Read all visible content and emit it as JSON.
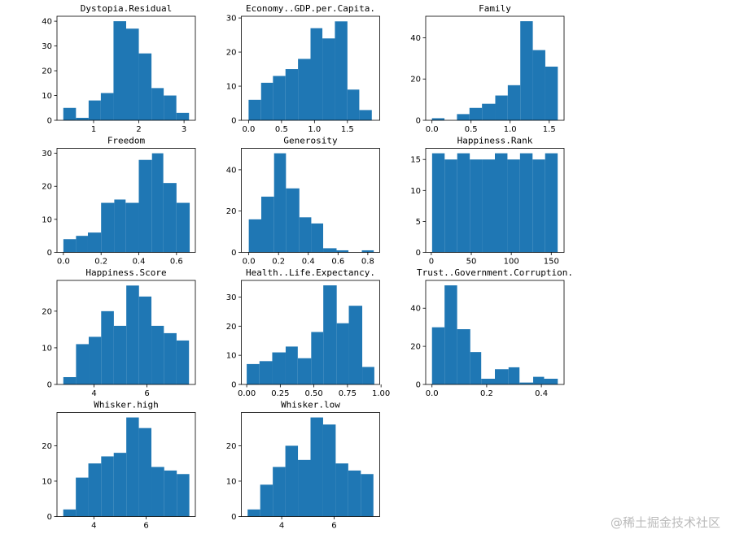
{
  "chart_data": [
    {
      "type": "histogram",
      "title": "Dystopia.Residual",
      "color": "#1f77b4",
      "bins": [
        0.33,
        0.61,
        0.89,
        1.16,
        1.44,
        1.72,
        2.0,
        2.28,
        2.55,
        2.83,
        3.11
      ],
      "values": [
        5,
        1,
        8,
        11,
        40,
        37,
        27,
        13,
        10,
        3
      ],
      "xlim": [
        0.19,
        3.25
      ],
      "ylim": [
        0,
        42
      ],
      "xticks": [
        1,
        2,
        3
      ],
      "yticks": [
        0,
        10,
        20,
        30,
        40
      ]
    },
    {
      "type": "histogram",
      "title": "Economy..GDP.per.Capita.",
      "color": "#1f77b4",
      "bins": [
        0,
        0.19,
        0.37,
        0.56,
        0.75,
        0.94,
        1.12,
        1.31,
        1.5,
        1.68,
        1.87
      ],
      "values": [
        6,
        11,
        13,
        15,
        18,
        27,
        24,
        29,
        9,
        3
      ],
      "xlim": [
        -0.11,
        1.99
      ],
      "ylim": [
        0,
        30.5
      ],
      "xticks": [
        {
          "value": 0,
          "label": "0.0"
        },
        0.5,
        {
          "value": 1,
          "label": "1.0"
        },
        1.5
      ],
      "yticks": [
        0,
        10,
        20,
        30
      ]
    },
    {
      "type": "histogram",
      "title": "Family",
      "color": "#1f77b4",
      "bins": [
        0,
        0.16,
        0.32,
        0.48,
        0.64,
        0.81,
        0.97,
        1.13,
        1.29,
        1.45,
        1.61
      ],
      "values": [
        1,
        0,
        3,
        6,
        8,
        12,
        17,
        48,
        34,
        26
      ],
      "xlim": [
        -0.08,
        1.69
      ],
      "ylim": [
        0,
        50.4
      ],
      "xticks": [
        {
          "value": 0,
          "label": "0.0"
        },
        0.5,
        {
          "value": 1,
          "label": "1.0"
        },
        1.5
      ],
      "yticks": [
        0,
        20,
        40
      ]
    },
    {
      "type": "histogram",
      "title": "Freedom",
      "color": "#1f77b4",
      "bins": [
        0,
        0.067,
        0.13,
        0.2,
        0.27,
        0.33,
        0.4,
        0.47,
        0.53,
        0.6,
        0.67
      ],
      "values": [
        4,
        5,
        6,
        15,
        16,
        15,
        28,
        30,
        21,
        15
      ],
      "xlim": [
        -0.034,
        0.7
      ],
      "ylim": [
        0,
        31.5
      ],
      "xticks": [
        {
          "value": 0,
          "label": "0.0"
        },
        0.2,
        0.4,
        0.6
      ],
      "yticks": [
        0,
        10,
        20,
        30
      ]
    },
    {
      "type": "histogram",
      "title": "Generosity",
      "color": "#1f77b4",
      "bins": [
        0,
        0.084,
        0.17,
        0.25,
        0.34,
        0.42,
        0.5,
        0.59,
        0.67,
        0.76,
        0.84
      ],
      "values": [
        16,
        27,
        48,
        31,
        17,
        14,
        2,
        1,
        0,
        1
      ],
      "xlim": [
        -0.05,
        0.88
      ],
      "ylim": [
        0,
        50.4
      ],
      "xticks": [
        {
          "value": 0,
          "label": "0.0"
        },
        0.2,
        0.4,
        0.6,
        0.8
      ],
      "yticks": [
        0,
        20,
        40
      ]
    },
    {
      "type": "histogram",
      "title": "Happiness.Rank",
      "color": "#1f77b4",
      "bins": [
        1,
        16.7,
        32.4,
        48.1,
        63.8,
        79.5,
        95.2,
        110.9,
        126.6,
        142.3,
        158
      ],
      "values": [
        16,
        15,
        16,
        15,
        15,
        16,
        15,
        16,
        15,
        16
      ],
      "xlim": [
        -7,
        166
      ],
      "ylim": [
        0,
        16.8
      ],
      "xticks": [
        0,
        50,
        100,
        150
      ],
      "yticks": [
        0,
        5,
        10,
        15
      ]
    },
    {
      "type": "histogram",
      "title": "Happiness.Score",
      "color": "#1f77b4",
      "bins": [
        2.84,
        3.32,
        3.8,
        4.27,
        4.75,
        5.22,
        5.7,
        6.17,
        6.64,
        7.12,
        7.59
      ],
      "values": [
        2,
        11,
        13,
        20,
        16,
        27,
        24,
        16,
        14,
        12
      ],
      "xlim": [
        2.6,
        7.83
      ],
      "ylim": [
        0,
        28.4
      ],
      "xticks": [
        4,
        6
      ],
      "yticks": [
        0,
        10,
        20
      ]
    },
    {
      "type": "histogram",
      "title": "Health..Life.Expectancy.",
      "color": "#1f77b4",
      "bins": [
        0,
        0.095,
        0.19,
        0.29,
        0.38,
        0.48,
        0.57,
        0.67,
        0.76,
        0.86,
        0.95
      ],
      "values": [
        7,
        8,
        11,
        13,
        9,
        18,
        34,
        21,
        27,
        6
      ],
      "xlim": [
        -0.04,
        0.99
      ],
      "ylim": [
        0,
        35.7
      ],
      "xticks": [
        {
          "value": 0,
          "label": "0.00"
        },
        0.25,
        {
          "value": 0.5,
          "label": "0.50"
        },
        0.75,
        {
          "value": 1,
          "label": "1.00"
        }
      ],
      "yticks": [
        0,
        10,
        20,
        30
      ]
    },
    {
      "type": "histogram",
      "title": "Trust..Government.Corruption.",
      "color": "#1f77b4",
      "bins": [
        0,
        0.046,
        0.092,
        0.14,
        0.18,
        0.23,
        0.28,
        0.32,
        0.37,
        0.41,
        0.46
      ],
      "values": [
        30,
        52,
        29,
        17,
        3,
        8,
        9,
        1,
        4,
        3
      ],
      "xlim": [
        -0.023,
        0.483
      ],
      "ylim": [
        0,
        54.6
      ],
      "xticks": [
        {
          "value": 0,
          "label": "0.0"
        },
        0.2,
        0.4
      ],
      "yticks": [
        0,
        20,
        40
      ]
    },
    {
      "type": "histogram",
      "title": "Whisker.high",
      "color": "#1f77b4",
      "bins": [
        2.83,
        3.31,
        3.79,
        4.28,
        4.76,
        5.24,
        5.72,
        6.2,
        6.69,
        7.17,
        7.65
      ],
      "values": [
        2,
        11,
        15,
        17,
        18,
        28,
        25,
        14,
        13,
        12
      ],
      "xlim": [
        2.59,
        7.88
      ],
      "ylim": [
        0,
        29.4
      ],
      "xticks": [
        4,
        6
      ],
      "yticks": [
        0,
        10,
        20
      ]
    },
    {
      "type": "histogram",
      "title": "Whisker.low",
      "color": "#1f77b4",
      "bins": [
        2.7,
        3.18,
        3.66,
        4.14,
        4.62,
        5.1,
        5.58,
        6.06,
        6.54,
        7.02,
        7.5
      ],
      "values": [
        2,
        9,
        14,
        20,
        16,
        28,
        26,
        15,
        13,
        12
      ],
      "xlim": [
        2.46,
        7.74
      ],
      "ylim": [
        0,
        29.4
      ],
      "xticks": [
        4,
        6
      ],
      "yticks": [
        0,
        10,
        20
      ]
    }
  ],
  "watermark": "@稀土掘金技术社区"
}
